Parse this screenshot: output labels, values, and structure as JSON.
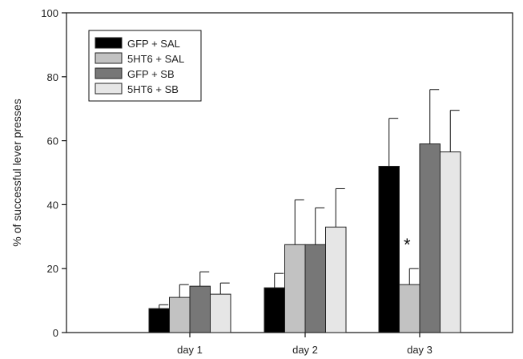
{
  "chart_data": {
    "type": "bar",
    "title": "",
    "xlabel": "",
    "ylabel": "% of successful lever presses",
    "ylim": [
      0,
      100
    ],
    "yticks": [
      0,
      20,
      40,
      60,
      80,
      100
    ],
    "categories": [
      "day 1",
      "day 2",
      "day 3"
    ],
    "series": [
      {
        "name": "GFP + SAL",
        "color": "#000000",
        "values": [
          7.5,
          14,
          52
        ],
        "errors": [
          1.2,
          4.5,
          15
        ]
      },
      {
        "name": "5HT6 + SAL",
        "color": "#c2c2c2",
        "values": [
          11,
          27.5,
          15
        ],
        "errors": [
          4,
          14,
          5
        ]
      },
      {
        "name": "GFP + SB",
        "color": "#777777",
        "values": [
          14.5,
          27.5,
          59
        ],
        "errors": [
          4.5,
          11.5,
          17
        ]
      },
      {
        "name": "5HT6 + SB",
        "color": "#e6e6e6",
        "values": [
          12,
          33,
          56.5
        ],
        "errors": [
          3.5,
          12,
          13
        ]
      }
    ],
    "legend_position": "top-left",
    "grid": false,
    "annotations": [
      {
        "text": "*",
        "category": "day 3",
        "series": "5HT6 + SAL"
      }
    ]
  }
}
